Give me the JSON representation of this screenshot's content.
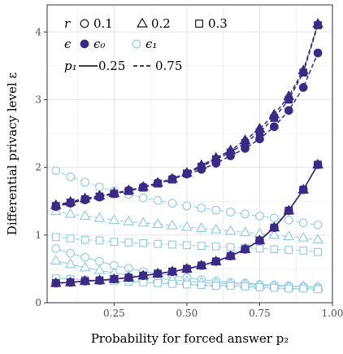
{
  "chart_data": {
    "type": "line",
    "xlabel": "Probability for forced answer p₂",
    "ylabel": "Differential privacy level ε",
    "xlim": [
      0.02,
      1.0
    ],
    "ylim": [
      0.0,
      4.4
    ],
    "xticks": [
      0.25,
      0.5,
      0.75,
      1.0
    ],
    "xtick_labels": [
      "0.25",
      "0.50",
      "0.75",
      "1.00"
    ],
    "yticks": [
      0,
      1,
      2,
      3,
      4
    ],
    "ytick_labels": [
      "0",
      "1",
      "2",
      "3",
      "4"
    ],
    "grid": true,
    "legend_position": "top-left",
    "colors": {
      "eps0": "#3b2a85",
      "eps1": "#8ecae6",
      "grid": "#e6e6e6",
      "frame": "#333333"
    },
    "legend": {
      "r_label": "r",
      "r_items": [
        {
          "shape": "circle",
          "label": "0.1"
        },
        {
          "shape": "triangle",
          "label": "0.2"
        },
        {
          "shape": "square",
          "label": "0.3"
        }
      ],
      "eps_label": "ϵ",
      "eps_items": [
        {
          "style": "filled",
          "label": "ϵ₀"
        },
        {
          "style": "open",
          "label": "ϵ₁"
        }
      ],
      "p1_label": "p₁",
      "p1_items": [
        {
          "linestyle": "solid",
          "label": "0.25"
        },
        {
          "linestyle": "dashed",
          "label": "0.75"
        }
      ]
    },
    "x": [
      0.05,
      0.1,
      0.15,
      0.2,
      0.25,
      0.3,
      0.35,
      0.4,
      0.45,
      0.5,
      0.55,
      0.6,
      0.65,
      0.7,
      0.75,
      0.8,
      0.85,
      0.9,
      0.95
    ],
    "series": [
      {
        "eps": "eps0",
        "r": 0.1,
        "p1": 0.25,
        "marker": "circle",
        "dash": false,
        "values": [
          0.29,
          0.3,
          0.32,
          0.33,
          0.35,
          0.37,
          0.4,
          0.43,
          0.46,
          0.5,
          0.55,
          0.61,
          0.69,
          0.79,
          0.92,
          1.11,
          1.36,
          1.67,
          2.04
        ]
      },
      {
        "eps": "eps0",
        "r": 0.2,
        "p1": 0.25,
        "marker": "triangle",
        "dash": false,
        "values": [
          0.29,
          0.3,
          0.32,
          0.33,
          0.35,
          0.37,
          0.4,
          0.43,
          0.46,
          0.5,
          0.55,
          0.61,
          0.69,
          0.79,
          0.92,
          1.11,
          1.36,
          1.67,
          2.04
        ]
      },
      {
        "eps": "eps0",
        "r": 0.3,
        "p1": 0.25,
        "marker": "square",
        "dash": false,
        "values": [
          0.29,
          0.3,
          0.32,
          0.33,
          0.35,
          0.37,
          0.4,
          0.43,
          0.46,
          0.5,
          0.55,
          0.61,
          0.69,
          0.79,
          0.92,
          1.11,
          1.36,
          1.67,
          2.04
        ]
      },
      {
        "eps": "eps0",
        "r": 0.1,
        "p1": 0.75,
        "marker": "circle",
        "dash": true,
        "values": [
          1.42,
          1.47,
          1.52,
          1.56,
          1.61,
          1.66,
          1.71,
          1.77,
          1.83,
          1.9,
          1.97,
          2.06,
          2.17,
          2.28,
          2.42,
          2.6,
          2.84,
          3.18,
          3.69
        ]
      },
      {
        "eps": "eps0",
        "r": 0.2,
        "p1": 0.75,
        "marker": "triangle",
        "dash": true,
        "values": [
          1.44,
          1.49,
          1.54,
          1.58,
          1.62,
          1.66,
          1.71,
          1.77,
          1.83,
          1.92,
          2.03,
          2.14,
          2.25,
          2.4,
          2.57,
          2.78,
          3.05,
          3.43,
          4.12
        ]
      },
      {
        "eps": "eps0",
        "r": 0.3,
        "p1": 0.75,
        "marker": "square",
        "dash": true,
        "values": [
          1.43,
          1.48,
          1.53,
          1.57,
          1.61,
          1.65,
          1.7,
          1.76,
          1.82,
          1.91,
          2.01,
          2.12,
          2.22,
          2.36,
          2.52,
          2.73,
          3.0,
          3.4,
          4.1
        ]
      },
      {
        "eps": "eps1",
        "r": 0.1,
        "p1": 0.25,
        "marker": "circle",
        "dash": false,
        "values": [
          0.8,
          0.73,
          0.67,
          0.61,
          0.55,
          0.51,
          0.46,
          0.43,
          0.4,
          0.37,
          0.34,
          0.32,
          0.3,
          0.29,
          0.27,
          0.26,
          0.25,
          0.24,
          0.23
        ]
      },
      {
        "eps": "eps1",
        "r": 0.2,
        "p1": 0.25,
        "marker": "triangle",
        "dash": false,
        "values": [
          0.62,
          0.57,
          0.52,
          0.48,
          0.44,
          0.41,
          0.38,
          0.36,
          0.34,
          0.32,
          0.3,
          0.29,
          0.28,
          0.27,
          0.26,
          0.25,
          0.24,
          0.24,
          0.23
        ]
      },
      {
        "eps": "eps1",
        "r": 0.3,
        "p1": 0.25,
        "marker": "square",
        "dash": false,
        "values": [
          0.36,
          0.35,
          0.34,
          0.33,
          0.32,
          0.31,
          0.3,
          0.29,
          0.28,
          0.27,
          0.26,
          0.25,
          0.25,
          0.24,
          0.23,
          0.22,
          0.21,
          0.21,
          0.2
        ]
      },
      {
        "eps": "eps1",
        "r": 0.1,
        "p1": 0.75,
        "marker": "circle",
        "dash": true,
        "values": [
          1.95,
          1.86,
          1.78,
          1.71,
          1.65,
          1.6,
          1.55,
          1.51,
          1.47,
          1.43,
          1.4,
          1.37,
          1.34,
          1.31,
          1.28,
          1.25,
          1.22,
          1.18,
          1.15
        ]
      },
      {
        "eps": "eps1",
        "r": 0.2,
        "p1": 0.75,
        "marker": "triangle",
        "dash": true,
        "values": [
          1.35,
          1.31,
          1.28,
          1.25,
          1.22,
          1.2,
          1.18,
          1.16,
          1.14,
          1.12,
          1.1,
          1.08,
          1.06,
          1.04,
          1.02,
          1.0,
          0.98,
          0.96,
          0.93
        ]
      },
      {
        "eps": "eps1",
        "r": 0.3,
        "p1": 0.75,
        "marker": "square",
        "dash": true,
        "values": [
          0.97,
          0.95,
          0.93,
          0.92,
          0.9,
          0.89,
          0.88,
          0.87,
          0.86,
          0.85,
          0.84,
          0.83,
          0.82,
          0.81,
          0.8,
          0.79,
          0.78,
          0.77,
          0.75
        ]
      }
    ]
  }
}
